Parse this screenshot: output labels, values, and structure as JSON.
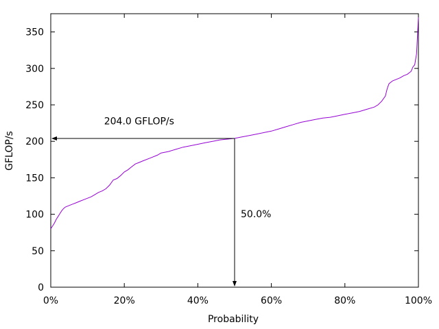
{
  "chart_data": {
    "type": "line",
    "xlabel": "Probability",
    "ylabel": "GFLOP/s",
    "xlim": [
      0,
      100
    ],
    "ylim": [
      0,
      375
    ],
    "x_ticks": [
      0,
      20,
      40,
      60,
      80,
      100
    ],
    "x_tick_labels": [
      "0%",
      "20%",
      "40%",
      "60%",
      "80%",
      "100%"
    ],
    "y_ticks": [
      0,
      50,
      100,
      150,
      200,
      250,
      300,
      350
    ],
    "y_tick_labels": [
      "0",
      "50",
      "100",
      "150",
      "200",
      "250",
      "300",
      "350"
    ],
    "grid": false,
    "legend": "none",
    "series": [
      {
        "color": "#9400d3",
        "x": [
          0,
          0.5,
          1,
          1.5,
          2,
          2.5,
          3,
          3.5,
          4,
          5,
          6,
          7,
          8,
          9,
          10,
          11,
          12,
          13,
          14,
          15,
          16,
          17,
          18,
          19,
          20,
          21,
          22,
          23,
          24,
          25,
          27,
          29,
          30,
          32,
          34,
          36,
          38,
          40,
          42,
          44,
          46,
          48,
          50,
          52,
          54,
          56,
          58,
          60,
          62,
          64,
          66,
          68,
          70,
          72,
          74,
          76,
          78,
          80,
          82,
          84,
          86,
          88,
          89,
          90,
          91,
          91.5,
          92,
          93,
          94,
          95,
          96,
          97,
          98,
          98.5,
          99,
          99.5,
          99.8,
          100
        ],
        "values": [
          80,
          84,
          88,
          93,
          97,
          101,
          105,
          108,
          110,
          112,
          114,
          116,
          118,
          120,
          122,
          124,
          127,
          130,
          132,
          135,
          140,
          147,
          149,
          153,
          158,
          161,
          165,
          169,
          171,
          173,
          177,
          181,
          184,
          186,
          189,
          192,
          194,
          196,
          198,
          200,
          202,
          203,
          204,
          206,
          208,
          210,
          212,
          214,
          217,
          220,
          223,
          226,
          228,
          230,
          232,
          233,
          235,
          237,
          239,
          241,
          244,
          247,
          250,
          255,
          262,
          272,
          279,
          283,
          285,
          287,
          290,
          292,
          296,
          302,
          305,
          320,
          350,
          370
        ]
      }
    ],
    "annotations": [
      {
        "text": "204.0 GFLOP/s",
        "y": 204.0
      },
      {
        "text": "50.0%",
        "x": 50.0
      }
    ]
  }
}
